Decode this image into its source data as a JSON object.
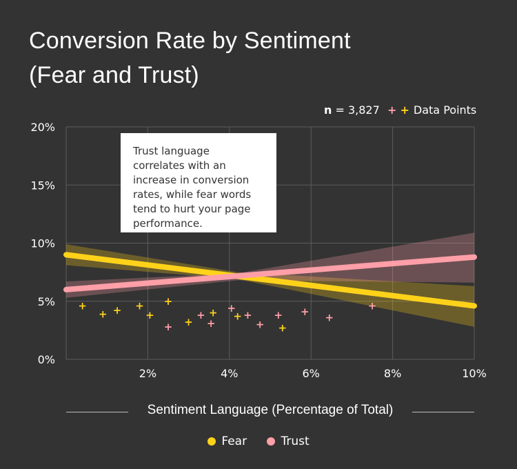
{
  "title_line1": "Conversion Rate by Sentiment",
  "title_line2": "(Fear and Trust)",
  "n_label": "n",
  "n_value": "= 3,827",
  "points_legend_label": "Data Points",
  "callout_text": "Trust language correlates with an increase in conversion rates, while fear words tend to hurt your page performance.",
  "colors": {
    "fear": "#ffd21a",
    "trust": "#ff9fa8",
    "background": "#333333",
    "grid": "#5c5c5c"
  },
  "chart_data": {
    "type": "scatter",
    "title": "Conversion Rate by Sentiment (Fear and Trust)",
    "xlabel": "Sentiment Language (Percentage of Total)",
    "ylabel": "",
    "xlim": [
      0,
      10
    ],
    "ylim": [
      0,
      20
    ],
    "x_ticks": [
      2,
      4,
      6,
      8,
      10
    ],
    "x_tick_labels": [
      "2%",
      "4%",
      "6%",
      "8%",
      "10%"
    ],
    "y_ticks": [
      0,
      5,
      10,
      15,
      20
    ],
    "y_tick_labels": [
      "0%",
      "5%",
      "10%",
      "15%",
      "20%"
    ],
    "grid": true,
    "legend": [
      {
        "name": "Fear",
        "color": "#ffd21a"
      },
      {
        "name": "Trust",
        "color": "#ff9fa8"
      }
    ],
    "series": [
      {
        "name": "Fear",
        "color": "#ffd21a",
        "points": [
          [
            0.4,
            4.6
          ],
          [
            0.9,
            3.9
          ],
          [
            1.25,
            4.2
          ],
          [
            1.8,
            4.6
          ],
          [
            2.05,
            3.8
          ],
          [
            2.5,
            5.0
          ],
          [
            3.0,
            3.2
          ],
          [
            3.6,
            4.0
          ],
          [
            4.2,
            3.7
          ],
          [
            5.3,
            2.7
          ]
        ],
        "trend": {
          "x": [
            0,
            10
          ],
          "y": [
            9.0,
            4.6
          ]
        },
        "confidence_band": {
          "x": [
            0,
            4.2,
            10
          ],
          "upper": [
            9.9,
            7.5,
            6.3
          ],
          "lower": [
            8.1,
            6.9,
            2.8
          ]
        }
      },
      {
        "name": "Trust",
        "color": "#ff9fa8",
        "points": [
          [
            2.5,
            2.8
          ],
          [
            3.3,
            3.8
          ],
          [
            3.55,
            3.1
          ],
          [
            4.05,
            4.4
          ],
          [
            4.45,
            3.8
          ],
          [
            4.75,
            3.0
          ],
          [
            5.2,
            3.8
          ],
          [
            5.85,
            4.1
          ],
          [
            6.45,
            3.6
          ],
          [
            7.5,
            4.6
          ]
        ],
        "trend": {
          "x": [
            0,
            10
          ],
          "y": [
            6.0,
            8.8
          ]
        },
        "confidence_band": {
          "x": [
            0,
            4.2,
            10
          ],
          "upper": [
            6.7,
            7.4,
            10.9
          ],
          "lower": [
            5.3,
            6.8,
            6.6
          ]
        }
      }
    ]
  }
}
